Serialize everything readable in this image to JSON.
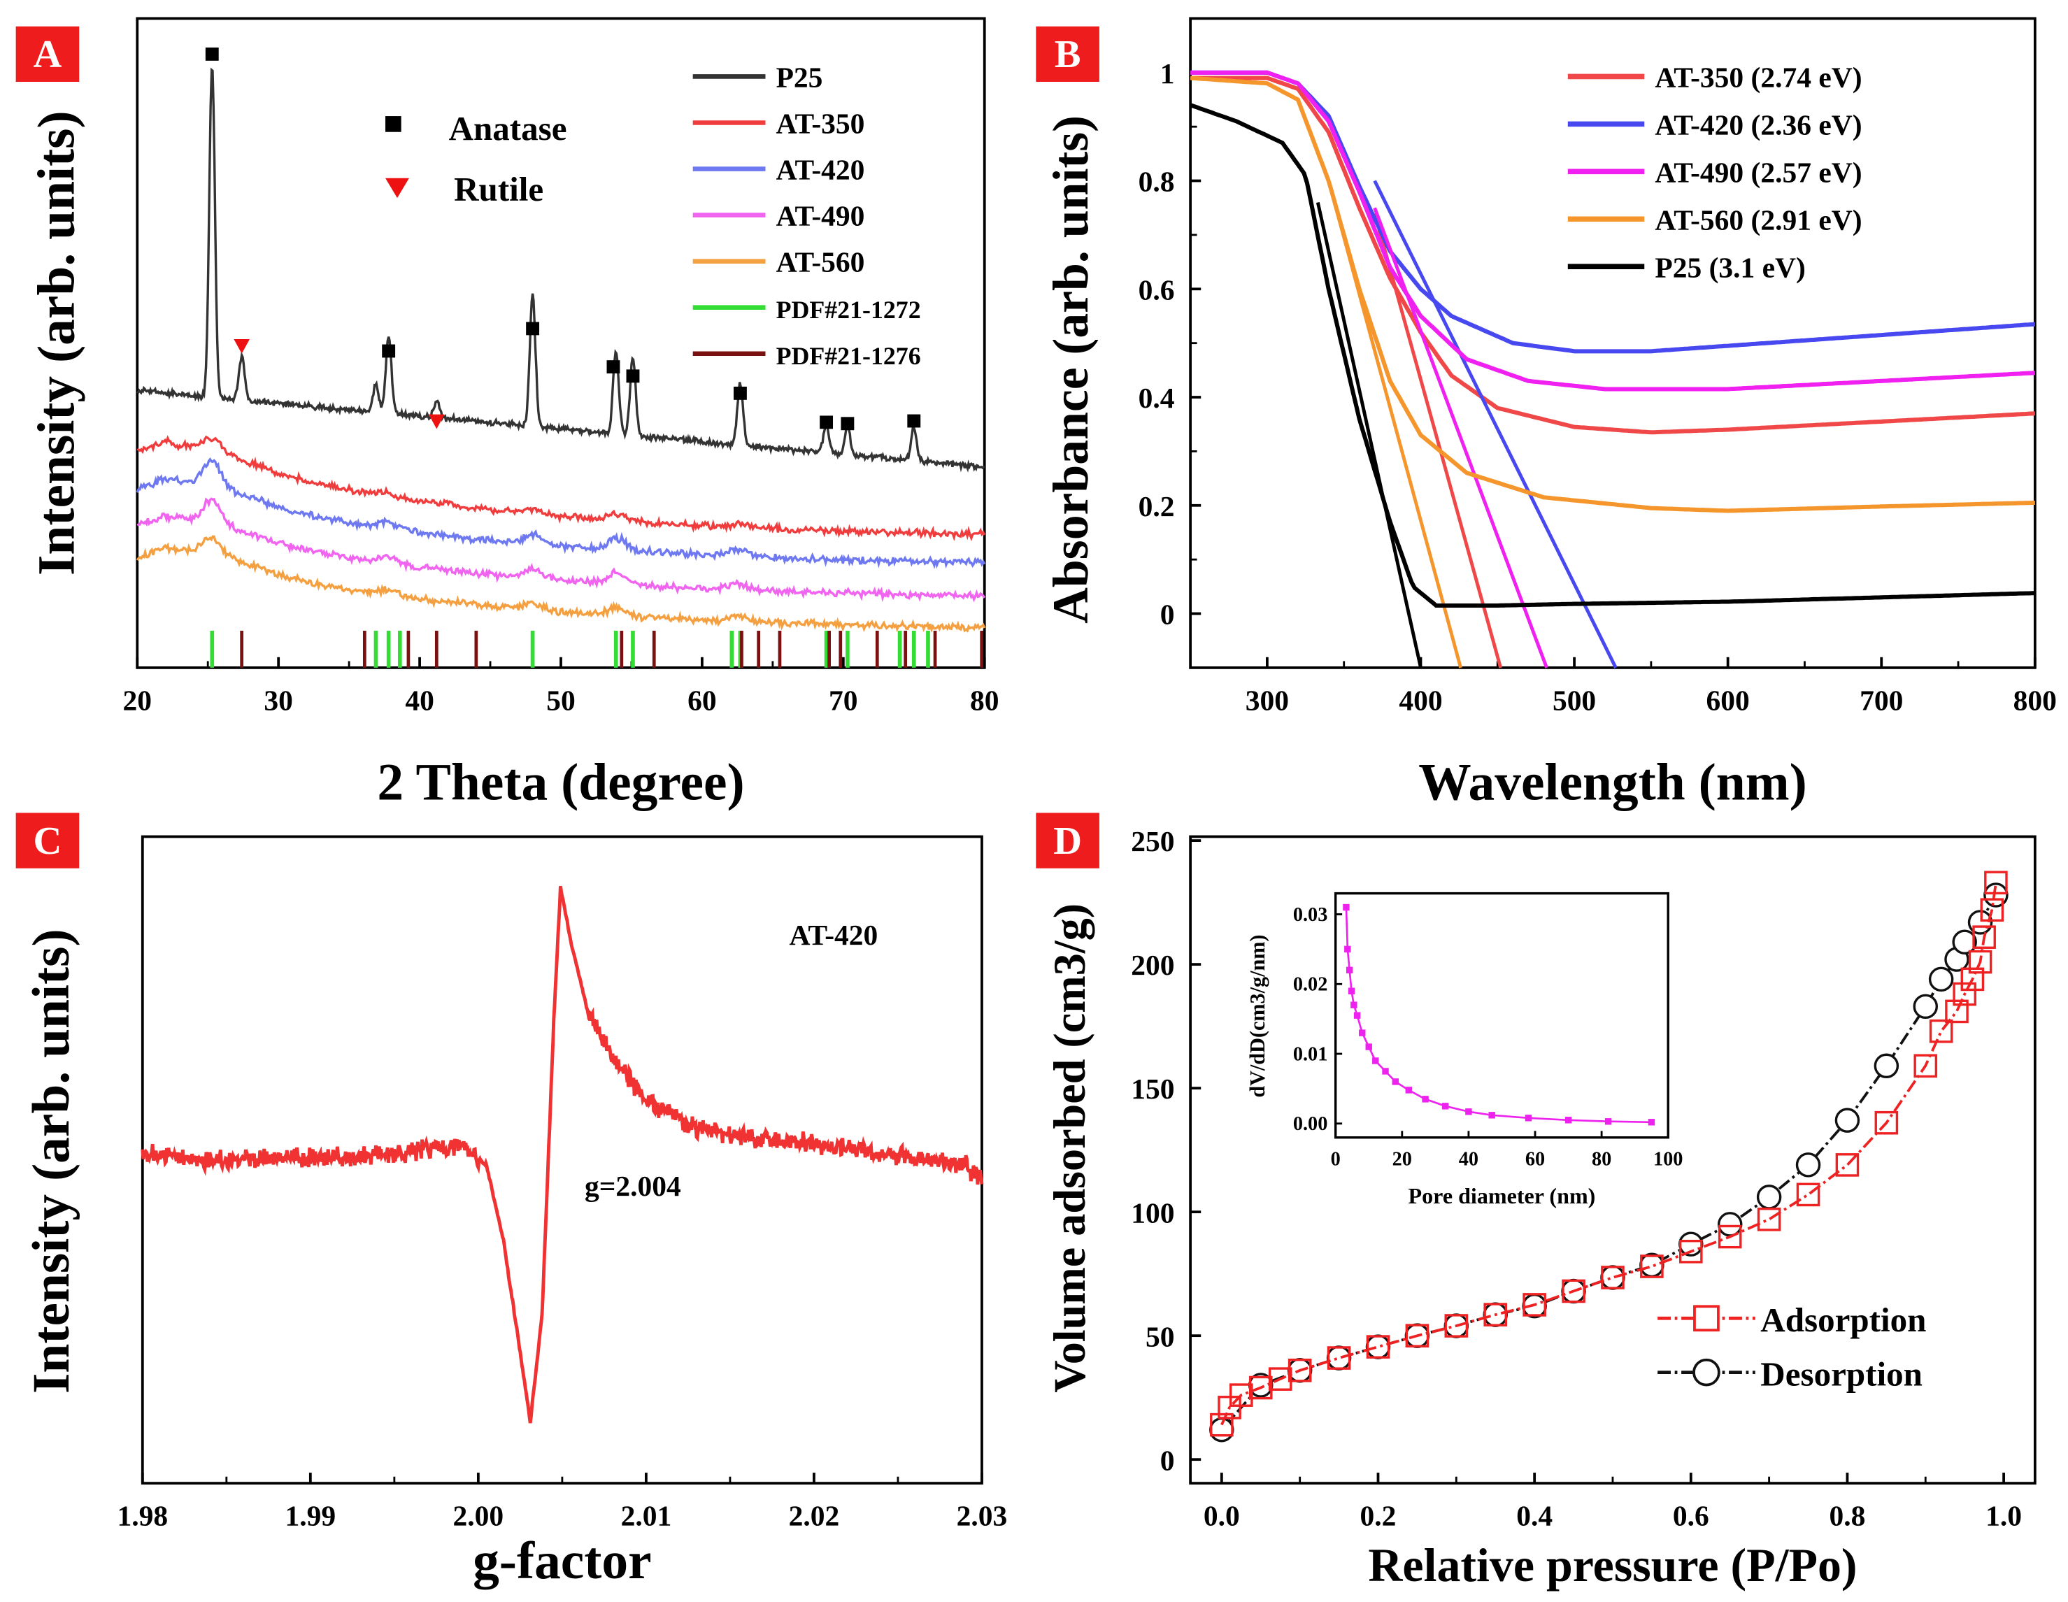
{
  "chart_data": [
    {
      "panel": "A",
      "type": "line",
      "xlabel": "2 Theta (degree)",
      "ylabel": "Intensity (arb. units)",
      "xlim": [
        20,
        80
      ],
      "ylim": [
        0,
        100
      ],
      "xticks": [
        20,
        30,
        40,
        50,
        60,
        70,
        80
      ],
      "legend": [
        {
          "name": "P25",
          "color": "#333333"
        },
        {
          "name": "AT-350",
          "color": "#f03c3c"
        },
        {
          "name": "AT-420",
          "color": "#6e78f0"
        },
        {
          "name": "AT-490",
          "color": "#f064f0"
        },
        {
          "name": "AT-560",
          "color": "#f5a040"
        },
        {
          "name": "PDF#21-1272",
          "color": "#33dd33"
        },
        {
          "name": "PDF#21-1276",
          "color": "#7a1010"
        }
      ],
      "markers": {
        "anatase": "Anatase",
        "rutile": "Rutile"
      },
      "peaks_anatase": [
        25.3,
        37.8,
        48.0,
        53.9,
        55.1,
        62.7,
        68.8,
        70.3,
        75.0
      ],
      "peaks_rutile": [
        27.4,
        41.2
      ],
      "p25_peaks": [
        [
          25.3,
          60
        ],
        [
          27.4,
          8
        ],
        [
          36.9,
          5
        ],
        [
          37.8,
          14
        ],
        [
          41.2,
          3
        ],
        [
          48.0,
          24
        ],
        [
          53.9,
          15
        ],
        [
          55.1,
          14
        ],
        [
          62.7,
          11
        ],
        [
          68.8,
          5
        ],
        [
          70.3,
          5
        ],
        [
          75.0,
          6
        ]
      ],
      "sticks_anatase": [
        25.3,
        36.9,
        37.8,
        38.6,
        48.0,
        53.9,
        55.1,
        62.1,
        62.7,
        68.8,
        70.3,
        74.0,
        75.0,
        76.0
      ],
      "sticks_rutile": [
        27.4,
        36.1,
        39.2,
        41.2,
        44.0,
        54.3,
        56.6,
        62.8,
        64.0,
        65.5,
        69.0,
        69.8,
        72.4,
        74.4,
        76.5,
        79.8
      ]
    },
    {
      "panel": "B",
      "type": "line",
      "xlabel": "Wavelength (nm)",
      "ylabel": "Absorbance (arb. units)",
      "xlim": [
        250,
        800
      ],
      "ylim": [
        -0.1,
        1.1
      ],
      "xticks": [
        300,
        400,
        500,
        600,
        700,
        800
      ],
      "yticks": [
        0.0,
        0.2,
        0.4,
        0.6,
        0.8,
        1.0
      ],
      "series": [
        {
          "name": "AT-350 (2.74 eV)",
          "color": "#f04848",
          "points": [
            [
              250,
              0.99
            ],
            [
              300,
              0.99
            ],
            [
              320,
              0.97
            ],
            [
              340,
              0.89
            ],
            [
              360,
              0.75
            ],
            [
              380,
              0.62
            ],
            [
              400,
              0.52
            ],
            [
              420,
              0.44
            ],
            [
              450,
              0.38
            ],
            [
              500,
              0.345
            ],
            [
              550,
              0.335
            ],
            [
              600,
              0.34
            ],
            [
              700,
              0.355
            ],
            [
              800,
              0.37
            ]
          ],
          "tangent": [
            [
              370,
              0.74
            ],
            [
              452,
              -0.1
            ]
          ]
        },
        {
          "name": "AT-420 (2.36 eV)",
          "color": "#4848f0",
          "points": [
            [
              250,
              1.0
            ],
            [
              300,
              1.0
            ],
            [
              320,
              0.98
            ],
            [
              340,
              0.92
            ],
            [
              360,
              0.79
            ],
            [
              380,
              0.67
            ],
            [
              400,
              0.6
            ],
            [
              420,
              0.55
            ],
            [
              460,
              0.5
            ],
            [
              500,
              0.485
            ],
            [
              550,
              0.485
            ],
            [
              600,
              0.495
            ],
            [
              700,
              0.515
            ],
            [
              800,
              0.535
            ]
          ],
          "tangent": [
            [
              370,
              0.8
            ],
            [
              527,
              -0.1
            ]
          ]
        },
        {
          "name": "AT-490 (2.57 eV)",
          "color": "#f020f0",
          "points": [
            [
              250,
              1.0
            ],
            [
              300,
              1.0
            ],
            [
              320,
              0.98
            ],
            [
              340,
              0.91
            ],
            [
              360,
              0.78
            ],
            [
              380,
              0.64
            ],
            [
              400,
              0.55
            ],
            [
              430,
              0.47
            ],
            [
              470,
              0.43
            ],
            [
              520,
              0.415
            ],
            [
              600,
              0.415
            ],
            [
              700,
              0.43
            ],
            [
              800,
              0.445
            ]
          ],
          "tangent": [
            [
              370,
              0.75
            ],
            [
              482,
              -0.1
            ]
          ]
        },
        {
          "name": "AT-560 (2.91 eV)",
          "color": "#f5962d",
          "points": [
            [
              250,
              0.99
            ],
            [
              300,
              0.98
            ],
            [
              320,
              0.95
            ],
            [
              340,
              0.8
            ],
            [
              360,
              0.6
            ],
            [
              380,
              0.43
            ],
            [
              400,
              0.33
            ],
            [
              430,
              0.26
            ],
            [
              480,
              0.215
            ],
            [
              550,
              0.195
            ],
            [
              600,
              0.19
            ],
            [
              700,
              0.198
            ],
            [
              800,
              0.205
            ]
          ],
          "tangent": [
            [
              340,
              0.8
            ],
            [
              426,
              -0.1
            ]
          ]
        },
        {
          "name": "P25 (3.1 eV)",
          "color": "#000000",
          "points": [
            [
              250,
              0.94
            ],
            [
              280,
              0.91
            ],
            [
              310,
              0.87
            ],
            [
              325,
              0.81
            ],
            [
              340,
              0.6
            ],
            [
              360,
              0.36
            ],
            [
              380,
              0.17
            ],
            [
              395,
              0.05
            ],
            [
              410,
              0.015
            ],
            [
              450,
              0.015
            ],
            [
              500,
              0.018
            ],
            [
              600,
              0.022
            ],
            [
              700,
              0.03
            ],
            [
              800,
              0.038
            ]
          ],
          "tangent": [
            [
              333,
              0.76
            ],
            [
              400,
              -0.1
            ]
          ]
        }
      ]
    },
    {
      "panel": "C",
      "type": "line",
      "xlabel": "g-factor",
      "ylabel": "Intensity (arb. units)",
      "xlim": [
        1.98,
        2.03
      ],
      "xticks": [
        "1.98",
        "1.99",
        "2.00",
        "2.01",
        "2.02",
        "2.03"
      ],
      "sample": "AT-420",
      "annotation": "g=2.004",
      "series": [
        {
          "name": "AT-420",
          "color": "#f03232",
          "points": [
            [
              1.98,
              0.5
            ],
            [
              1.984,
              0.49
            ],
            [
              1.99,
              0.495
            ],
            [
              1.995,
              0.5
            ],
            [
              1.999,
              0.52
            ],
            [
              2.0005,
              0.48
            ],
            [
              2.0015,
              0.34
            ],
            [
              2.0025,
              0.13
            ],
            [
              2.0031,
              0.0
            ],
            [
              2.0038,
              0.2
            ],
            [
              2.0045,
              0.75
            ],
            [
              2.0049,
              1.0
            ],
            [
              2.0055,
              0.9
            ],
            [
              2.0065,
              0.77
            ],
            [
              2.008,
              0.68
            ],
            [
              2.01,
              0.6
            ],
            [
              2.013,
              0.55
            ],
            [
              2.016,
              0.53
            ],
            [
              2.02,
              0.52
            ],
            [
              2.025,
              0.5
            ],
            [
              2.029,
              0.48
            ],
            [
              2.03,
              0.455
            ]
          ]
        }
      ]
    },
    {
      "panel": "D",
      "type": "line",
      "xlabel": "Relative pressure (P/Po)",
      "ylabel": "Volume adsorbed (cm3/g)",
      "xlim": [
        -0.04,
        1.04
      ],
      "ylim": [
        0,
        250
      ],
      "xticks": [
        "0.0",
        "0.2",
        "0.4",
        "0.6",
        "0.8",
        "1.0"
      ],
      "yticks": [
        0,
        50,
        100,
        150,
        200,
        250
      ],
      "series": [
        {
          "name": "Adsorption",
          "color": "#ee2222",
          "marker": "square",
          "points": [
            [
              0.0,
              14
            ],
            [
              0.01,
              21
            ],
            [
              0.025,
              26
            ],
            [
              0.05,
              29
            ],
            [
              0.075,
              32.5
            ],
            [
              0.1,
              36
            ],
            [
              0.15,
              41
            ],
            [
              0.2,
              45.5
            ],
            [
              0.25,
              50
            ],
            [
              0.3,
              54
            ],
            [
              0.35,
              58.5
            ],
            [
              0.4,
              62.5
            ],
            [
              0.45,
              68
            ],
            [
              0.5,
              73.5
            ],
            [
              0.55,
              78
            ],
            [
              0.6,
              84
            ],
            [
              0.65,
              90
            ],
            [
              0.7,
              97
            ],
            [
              0.75,
              107
            ],
            [
              0.8,
              119
            ],
            [
              0.85,
              136
            ],
            [
              0.9,
              159
            ],
            [
              0.92,
              173
            ],
            [
              0.94,
              181
            ],
            [
              0.95,
              188
            ],
            [
              0.96,
              194
            ],
            [
              0.97,
              201
            ],
            [
              0.975,
              211
            ],
            [
              0.985,
              222
            ],
            [
              0.99,
              233
            ]
          ]
        },
        {
          "name": "Desorption",
          "color": "#111111",
          "marker": "circle",
          "points": [
            [
              0.0,
              12
            ],
            [
              0.05,
              30
            ],
            [
              0.1,
              36
            ],
            [
              0.15,
              41
            ],
            [
              0.2,
              45.5
            ],
            [
              0.25,
              50
            ],
            [
              0.3,
              54
            ],
            [
              0.35,
              58.5
            ],
            [
              0.4,
              62
            ],
            [
              0.45,
              68
            ],
            [
              0.5,
              73.5
            ],
            [
              0.55,
              78.5
            ],
            [
              0.6,
              87
            ],
            [
              0.65,
              95
            ],
            [
              0.7,
              106
            ],
            [
              0.75,
              119
            ],
            [
              0.8,
              137
            ],
            [
              0.85,
              159
            ],
            [
              0.9,
              183
            ],
            [
              0.92,
              194
            ],
            [
              0.94,
              202
            ],
            [
              0.95,
              209
            ],
            [
              0.97,
              217
            ],
            [
              0.99,
              228
            ]
          ]
        }
      ],
      "inset": {
        "xlabel": "Pore diameter (nm)",
        "ylabel": "dV/dD(cm3/g/nm)",
        "xlim": [
          0,
          100
        ],
        "ylim": [
          -0.002,
          0.033
        ],
        "xticks": [
          0,
          20,
          40,
          60,
          80,
          100
        ],
        "yticks": [
          "0.00",
          "0.01",
          "0.02",
          "0.03"
        ],
        "color": "#ee22ee",
        "points": [
          [
            3.2,
            0.031
          ],
          [
            3.6,
            0.025
          ],
          [
            4.2,
            0.022
          ],
          [
            4.8,
            0.019
          ],
          [
            5.5,
            0.017
          ],
          [
            6.5,
            0.0155
          ],
          [
            8,
            0.013
          ],
          [
            10,
            0.011
          ],
          [
            12,
            0.009
          ],
          [
            15,
            0.0075
          ],
          [
            18,
            0.006
          ],
          [
            22,
            0.0048
          ],
          [
            27,
            0.0035
          ],
          [
            33,
            0.0025
          ],
          [
            40,
            0.0017
          ],
          [
            47,
            0.0012
          ],
          [
            58,
            0.0008
          ],
          [
            70,
            0.0005
          ],
          [
            82,
            0.0003
          ],
          [
            95,
            0.0002
          ]
        ]
      }
    }
  ],
  "panel_labels": [
    "A",
    "B",
    "C",
    "D"
  ]
}
